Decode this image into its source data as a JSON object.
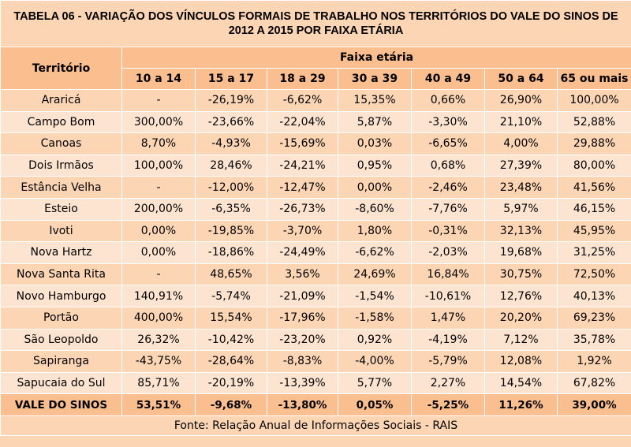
{
  "title": "TABELA 06 - VARIAÇÃO DOS VÍNCULOS FORMAIS DE TRABALHO NOS TERRITÓRIOS DO VALE DO SINOS DE 2012 A 2015 POR FAIXA ETÁRIA",
  "header": {
    "territory_label": "Território",
    "group_label": "Faixa etária",
    "columns": [
      "10 a 14",
      "15 a 17",
      "18 a 29",
      "30 a 39",
      "40 a 49",
      "50 a 64",
      "65 ou mais"
    ]
  },
  "rows": [
    {
      "name": "Araricá",
      "values": [
        "-",
        "-26,19%",
        "-6,62%",
        "15,35%",
        "0,66%",
        "26,90%",
        "100,00%"
      ]
    },
    {
      "name": "Campo Bom",
      "values": [
        "300,00%",
        "-23,66%",
        "-22,04%",
        "5,87%",
        "-3,30%",
        "21,10%",
        "52,88%"
      ]
    },
    {
      "name": "Canoas",
      "values": [
        "8,70%",
        "-4,93%",
        "-15,69%",
        "0,03%",
        "-6,65%",
        "4,00%",
        "29,88%"
      ]
    },
    {
      "name": "Dois Irmãos",
      "values": [
        "100,00%",
        "28,46%",
        "-24,21%",
        "0,95%",
        "0,68%",
        "27,39%",
        "80,00%"
      ]
    },
    {
      "name": "Estância Velha",
      "values": [
        "-",
        "-12,00%",
        "-12,47%",
        "0,00%",
        "-2,46%",
        "23,48%",
        "41,56%"
      ]
    },
    {
      "name": "Esteio",
      "values": [
        "200,00%",
        "-6,35%",
        "-26,73%",
        "-8,60%",
        "-7,76%",
        "5,97%",
        "46,15%"
      ]
    },
    {
      "name": "Ivoti",
      "values": [
        "0,00%",
        "-19,85%",
        "-3,70%",
        "1,80%",
        "-0,31%",
        "32,13%",
        "45,95%"
      ]
    },
    {
      "name": "Nova Hartz",
      "values": [
        "0,00%",
        "-18,86%",
        "-24,49%",
        "-6,62%",
        "-2,03%",
        "19,68%",
        "31,25%"
      ]
    },
    {
      "name": "Nova Santa Rita",
      "values": [
        "-",
        "48,65%",
        "3,56%",
        "24,69%",
        "16,84%",
        "30,75%",
        "72,50%"
      ]
    },
    {
      "name": "Novo Hamburgo",
      "values": [
        "140,91%",
        "-5,74%",
        "-21,09%",
        "-1,54%",
        "-10,61%",
        "12,76%",
        "40,13%"
      ]
    },
    {
      "name": "Portão",
      "values": [
        "400,00%",
        "15,54%",
        "-17,96%",
        "-1,58%",
        "1,47%",
        "20,20%",
        "69,23%"
      ]
    },
    {
      "name": "São Leopoldo",
      "values": [
        "26,32%",
        "-10,42%",
        "-23,20%",
        "0,92%",
        "-4,19%",
        "7,12%",
        "35,78%"
      ]
    },
    {
      "name": "Sapiranga",
      "values": [
        "-43,75%",
        "-28,64%",
        "-8,83%",
        "-4,00%",
        "-5,79%",
        "12,08%",
        "1,92%"
      ]
    },
    {
      "name": "Sapucaia do Sul",
      "values": [
        "85,71%",
        "-20,19%",
        "-13,39%",
        "5,77%",
        "2,27%",
        "14,54%",
        "67,82%"
      ]
    }
  ],
  "total": {
    "name": "VALE DO SINOS",
    "values": [
      "53,51%",
      "-9,68%",
      "-13,80%",
      "0,05%",
      "-5,25%",
      "11,26%",
      "39,00%"
    ]
  },
  "footer": "Fonte: Relação Anual de Informações Sociais - RAIS",
  "colors": {
    "header_fill": "#FBBE8F",
    "row_fill_a": "#FCD5B4",
    "row_fill_b": "#FDE4D0",
    "gridline": "#FFFFFF"
  }
}
